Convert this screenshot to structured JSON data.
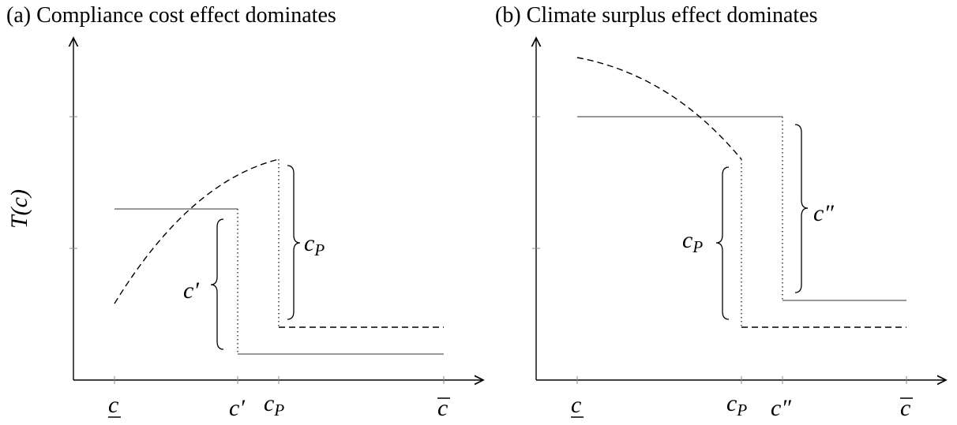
{
  "panels": [
    {
      "title": "(a) Compliance cost effect dominates",
      "y_label": "T(c)",
      "x_ticks": [
        {
          "base": "c"
        },
        {
          "base": "c′"
        },
        {
          "base": "c",
          "sub": "P"
        },
        {
          "base": "c"
        }
      ],
      "braces": [
        {
          "base": "c′"
        },
        {
          "base": "c",
          "sub": "P"
        }
      ]
    },
    {
      "title": "(b) Climate surplus effect dominates",
      "x_ticks": [
        {
          "base": "c"
        },
        {
          "base": "c",
          "sub": "P"
        },
        {
          "base": "c″"
        },
        {
          "base": "c"
        }
      ],
      "braces": [
        {
          "base": "c",
          "sub": "P"
        },
        {
          "base": "c″"
        }
      ]
    }
  ]
}
